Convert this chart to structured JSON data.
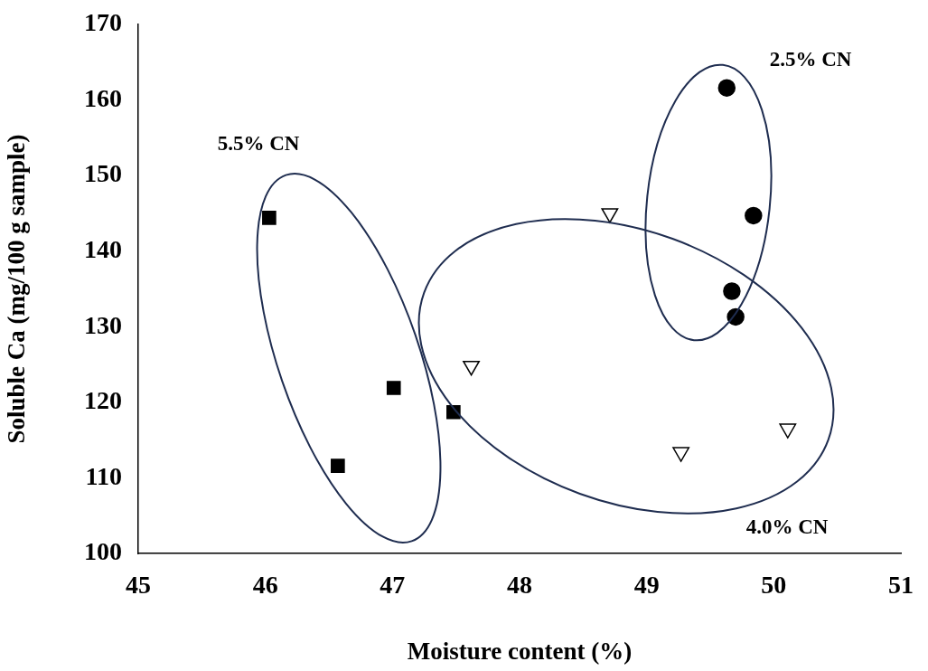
{
  "chart_data": {
    "type": "scatter",
    "xlabel": "Moisture content (%)",
    "ylabel": "Soluble Ca (mg/100 g sample)",
    "xlim": [
      45,
      51
    ],
    "xticks": [
      45,
      46,
      47,
      48,
      49,
      50,
      51
    ],
    "ylim": [
      100,
      170
    ],
    "yticks": [
      100,
      110,
      120,
      130,
      140,
      150,
      160,
      170
    ],
    "grid": false,
    "legend": false,
    "series": [
      {
        "color": "#000000",
        "marker": "square",
        "x": [
          46.03,
          46.57,
          47.01,
          47.48
        ],
        "values": [
          144.4,
          111.6,
          121.9,
          118.7
        ]
      },
      {
        "color": "#000000",
        "marker": "circle",
        "x": [
          49.63,
          49.84,
          49.67,
          49.7
        ],
        "values": [
          161.6,
          144.7,
          134.7,
          131.3
        ]
      },
      {
        "color": "#ffffff",
        "marker": "triangle",
        "x": [
          48.71,
          47.62,
          49.27,
          50.11
        ],
        "values": [
          145.0,
          124.8,
          113.4,
          116.5
        ]
      }
    ],
    "annotations": [
      "5.5% CN",
      "2.5% CN",
      "4.0% CN"
    ]
  }
}
